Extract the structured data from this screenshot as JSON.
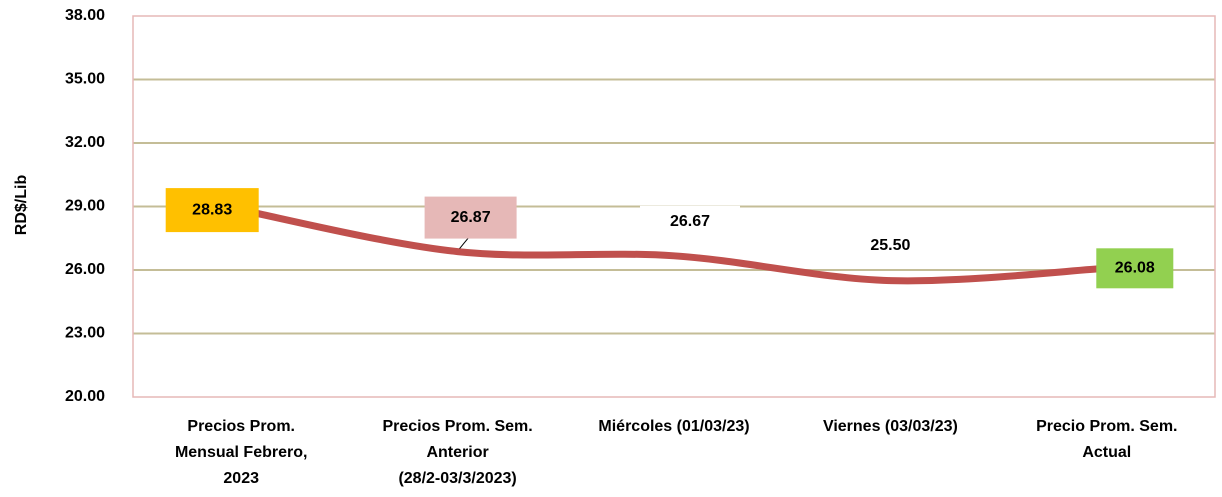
{
  "chart_data": {
    "type": "line",
    "y_label": "RD$/Lib",
    "categories": [
      [
        "Precios Prom.",
        "Mensual Febrero,",
        "2023"
      ],
      [
        "Precios Prom. Sem.",
        "Anterior",
        "(28/2-03/3/2023)"
      ],
      [
        "Miércoles  (01/03/23)"
      ],
      [
        "Viernes  (03/03/23)"
      ],
      [
        "Precio Prom. Sem.",
        "Actual"
      ]
    ],
    "values": [
      28.83,
      26.87,
      26.67,
      25.5,
      26.08
    ],
    "value_labels": [
      "28.83",
      "26.87",
      "26.67",
      "25.50",
      "26.08"
    ],
    "label_colors": [
      "#ffc000",
      "#e6b8b7",
      "#ffffff",
      "#ffffff",
      "#92d050"
    ],
    "color": "#c0504d",
    "smooth": true,
    "grid": true,
    "ylim": [
      20,
      38
    ],
    "yticks": [
      {
        "value": 20,
        "label": "20.00"
      },
      {
        "value": 23,
        "label": "23.00"
      },
      {
        "value": 26,
        "label": "26.00"
      },
      {
        "value": 29,
        "label": "29.00"
      },
      {
        "value": 32,
        "label": "32.00"
      },
      {
        "value": 35,
        "label": "35.00"
      },
      {
        "value": 38,
        "label": "38.00"
      }
    ]
  }
}
